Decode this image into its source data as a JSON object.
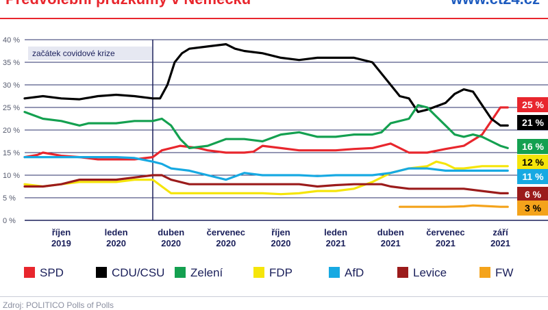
{
  "header": {
    "title": "Předvolební průzkumy v Německu",
    "site": "www.ct24.cz"
  },
  "source": "Zdroj: POLITICO Polls of Polls",
  "chart_data": {
    "type": "line",
    "ylim": [
      0,
      40
    ],
    "y_ticks": [
      "0 %",
      "5 %",
      "10 %",
      "15 %",
      "20 %",
      "25 %",
      "30 %",
      "35 %",
      "40 %"
    ],
    "x_range": [
      0,
      28.6
    ],
    "x_ticks": [
      {
        "x": 2.0,
        "label1": "říjen",
        "label2": "2019"
      },
      {
        "x": 5.0,
        "label1": "leden",
        "label2": "2020"
      },
      {
        "x": 8.0,
        "label1": "duben",
        "label2": "2020"
      },
      {
        "x": 11.0,
        "label1": "červenec",
        "label2": "2020"
      },
      {
        "x": 14.0,
        "label1": "říjen",
        "label2": "2020"
      },
      {
        "x": 17.0,
        "label1": "leden",
        "label2": "2021"
      },
      {
        "x": 20.0,
        "label1": "duben",
        "label2": "2021"
      },
      {
        "x": 23.0,
        "label1": "červenec",
        "label2": "2021"
      },
      {
        "x": 26.0,
        "label1": "září",
        "label2": "2021"
      }
    ],
    "annotation": {
      "x": 7.0,
      "text": "začátek covidové krize"
    },
    "series": [
      {
        "name": "SPD",
        "color": "#e8262d",
        "end_label": "25 %",
        "points": [
          [
            0,
            14
          ],
          [
            0.7,
            14.5
          ],
          [
            1,
            15
          ],
          [
            2,
            14.3
          ],
          [
            3,
            14
          ],
          [
            4,
            13.5
          ],
          [
            5,
            13.5
          ],
          [
            6,
            13.5
          ],
          [
            7,
            14
          ],
          [
            7.5,
            15.5
          ],
          [
            8.5,
            16.5
          ],
          [
            9.5,
            16
          ],
          [
            10,
            15.5
          ],
          [
            11,
            15
          ],
          [
            12,
            15
          ],
          [
            12.5,
            15.2
          ],
          [
            13,
            16.5
          ],
          [
            14,
            16
          ],
          [
            15,
            15.5
          ],
          [
            16,
            15.5
          ],
          [
            17,
            15.5
          ],
          [
            18,
            15.8
          ],
          [
            19,
            16
          ],
          [
            20,
            17
          ],
          [
            21,
            15
          ],
          [
            22,
            15
          ],
          [
            23,
            15.8
          ],
          [
            24,
            16.5
          ],
          [
            25,
            19
          ],
          [
            25.5,
            22
          ],
          [
            26,
            25
          ],
          [
            26.4,
            25
          ]
        ]
      },
      {
        "name": "CDU/CSU",
        "color": "#000000",
        "end_label": "21 %",
        "points": [
          [
            0,
            27
          ],
          [
            1,
            27.5
          ],
          [
            2,
            27
          ],
          [
            3,
            26.8
          ],
          [
            4,
            27.5
          ],
          [
            5,
            27.8
          ],
          [
            6,
            27.5
          ],
          [
            7,
            27
          ],
          [
            7.4,
            27
          ],
          [
            7.8,
            30
          ],
          [
            8.2,
            35
          ],
          [
            8.6,
            37
          ],
          [
            9,
            38
          ],
          [
            10,
            38.5
          ],
          [
            11,
            39
          ],
          [
            11.5,
            38
          ],
          [
            12,
            37.5
          ],
          [
            13,
            37
          ],
          [
            14,
            36
          ],
          [
            15,
            35.5
          ],
          [
            16,
            36
          ],
          [
            17,
            36
          ],
          [
            18,
            36
          ],
          [
            19,
            35
          ],
          [
            20,
            30
          ],
          [
            20.5,
            27.5
          ],
          [
            21,
            27
          ],
          [
            21.5,
            24
          ],
          [
            22,
            24.5
          ],
          [
            23,
            26
          ],
          [
            23.5,
            28
          ],
          [
            24,
            29
          ],
          [
            24.5,
            28.5
          ],
          [
            25,
            25.5
          ],
          [
            25.5,
            22.5
          ],
          [
            26,
            21
          ],
          [
            26.4,
            21
          ]
        ]
      },
      {
        "name": "Zelení",
        "color": "#14a050",
        "end_label": "16 %",
        "points": [
          [
            0,
            24
          ],
          [
            1,
            22.5
          ],
          [
            2,
            22
          ],
          [
            3,
            21
          ],
          [
            3.5,
            21.5
          ],
          [
            4,
            21.5
          ],
          [
            5,
            21.5
          ],
          [
            6,
            22
          ],
          [
            7,
            22
          ],
          [
            7.5,
            22.5
          ],
          [
            8,
            21
          ],
          [
            8.5,
            18
          ],
          [
            9,
            16
          ],
          [
            10,
            16.5
          ],
          [
            11,
            18
          ],
          [
            12,
            18
          ],
          [
            13,
            17.5
          ],
          [
            14,
            19
          ],
          [
            15,
            19.5
          ],
          [
            16,
            18.5
          ],
          [
            17,
            18.5
          ],
          [
            18,
            19
          ],
          [
            19,
            19
          ],
          [
            19.5,
            19.5
          ],
          [
            20,
            21.5
          ],
          [
            21,
            22.5
          ],
          [
            21.5,
            25.5
          ],
          [
            22,
            25
          ],
          [
            22.5,
            23
          ],
          [
            23,
            21
          ],
          [
            23.5,
            19
          ],
          [
            24,
            18.5
          ],
          [
            24.5,
            19
          ],
          [
            25,
            18.5
          ],
          [
            25.5,
            17.5
          ],
          [
            26,
            16.5
          ],
          [
            26.4,
            16
          ]
        ]
      },
      {
        "name": "FDP",
        "color": "#f5e50a",
        "end_label": "12 %",
        "points": [
          [
            0,
            8
          ],
          [
            1,
            7.5
          ],
          [
            2,
            8
          ],
          [
            3,
            8.5
          ],
          [
            4,
            8.5
          ],
          [
            5,
            8.5
          ],
          [
            6,
            9
          ],
          [
            7,
            9
          ],
          [
            7.5,
            7.5
          ],
          [
            8,
            6
          ],
          [
            9,
            6
          ],
          [
            10,
            6
          ],
          [
            11,
            6
          ],
          [
            12,
            6
          ],
          [
            13,
            6
          ],
          [
            14,
            5.8
          ],
          [
            15,
            6
          ],
          [
            16,
            6.5
          ],
          [
            17,
            6.5
          ],
          [
            18,
            7
          ],
          [
            19,
            8.5
          ],
          [
            20,
            10.5
          ],
          [
            21,
            11.5
          ],
          [
            22,
            12
          ],
          [
            22.5,
            13
          ],
          [
            23,
            12.5
          ],
          [
            23.5,
            11.5
          ],
          [
            24,
            11.5
          ],
          [
            25,
            12
          ],
          [
            26,
            12
          ],
          [
            26.4,
            12
          ]
        ]
      },
      {
        "name": "AfD",
        "color": "#17a9e2",
        "end_label": "11 %",
        "points": [
          [
            0,
            14
          ],
          [
            1,
            14
          ],
          [
            2,
            14
          ],
          [
            3,
            14
          ],
          [
            4,
            14
          ],
          [
            5,
            14
          ],
          [
            6,
            13.8
          ],
          [
            7,
            13
          ],
          [
            7.5,
            12.5
          ],
          [
            8,
            11.5
          ],
          [
            9,
            11
          ],
          [
            10,
            10
          ],
          [
            11,
            9
          ],
          [
            12,
            10.5
          ],
          [
            13,
            10
          ],
          [
            14,
            10
          ],
          [
            15,
            10
          ],
          [
            16,
            9.8
          ],
          [
            17,
            10
          ],
          [
            18,
            10
          ],
          [
            19,
            10
          ],
          [
            20,
            10.5
          ],
          [
            21,
            11.5
          ],
          [
            22,
            11.5
          ],
          [
            23,
            11
          ],
          [
            24,
            11
          ],
          [
            25,
            11
          ],
          [
            26,
            11
          ],
          [
            26.4,
            11
          ]
        ]
      },
      {
        "name": "Levice",
        "color": "#9b1b1b",
        "end_label": "6 %",
        "points": [
          [
            0,
            7.5
          ],
          [
            1,
            7.5
          ],
          [
            2,
            8
          ],
          [
            3,
            9
          ],
          [
            4,
            9
          ],
          [
            5,
            9
          ],
          [
            6,
            9.5
          ],
          [
            7,
            10
          ],
          [
            7.5,
            10
          ],
          [
            8,
            9
          ],
          [
            9,
            8
          ],
          [
            10,
            8
          ],
          [
            11,
            8
          ],
          [
            12,
            8
          ],
          [
            13,
            8
          ],
          [
            14,
            8
          ],
          [
            15,
            8
          ],
          [
            16,
            7.5
          ],
          [
            17,
            7.8
          ],
          [
            18,
            8
          ],
          [
            19,
            8
          ],
          [
            19.5,
            8
          ],
          [
            20,
            7.5
          ],
          [
            21,
            7
          ],
          [
            22,
            7
          ],
          [
            23,
            7
          ],
          [
            24,
            7
          ],
          [
            25,
            6.5
          ],
          [
            26,
            6
          ],
          [
            26.4,
            6
          ]
        ]
      },
      {
        "name": "FW",
        "color": "#f4a31b",
        "end_label": "3 %",
        "points": [
          [
            20.5,
            3
          ],
          [
            21,
            3
          ],
          [
            22,
            3
          ],
          [
            23,
            3
          ],
          [
            24,
            3.1
          ],
          [
            24.5,
            3.3
          ],
          [
            25,
            3.2
          ],
          [
            26,
            3
          ],
          [
            26.4,
            3
          ]
        ]
      }
    ]
  }
}
